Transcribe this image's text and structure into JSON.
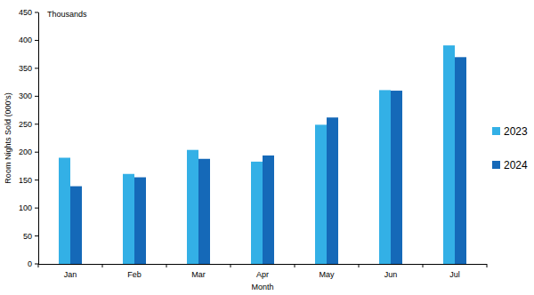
{
  "chart_data": {
    "type": "bar",
    "annotations": [
      "Thousands"
    ],
    "x_label": "Month",
    "y_label": "Room Nights Sold (000's)",
    "categories": [
      "Jan",
      "Feb",
      "Mar",
      "Apr",
      "May",
      "Jun",
      "Jul"
    ],
    "series": [
      {
        "name": "2023",
        "color": "#33b0e6",
        "values": [
          190,
          161,
          204,
          183,
          249,
          311,
          391
        ]
      },
      {
        "name": "2024",
        "color": "#1569b8",
        "values": [
          139,
          155,
          188,
          194,
          262,
          310,
          370
        ]
      }
    ],
    "ylim": [
      0,
      450
    ],
    "yticks": [
      0,
      50,
      100,
      150,
      200,
      250,
      300,
      350,
      400,
      450
    ],
    "grid": false,
    "legend": "right"
  }
}
